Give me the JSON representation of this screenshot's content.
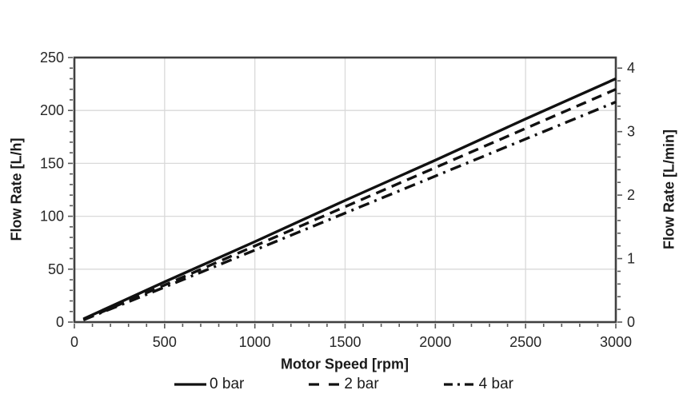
{
  "chart_data": {
    "type": "line",
    "title": "",
    "xlabel": "Motor Speed [rpm]",
    "ylabel_left": "Flow Rate [L/h]",
    "ylabel_right": "Flow Rate [L/min]",
    "x": [
      50,
      500,
      1000,
      1500,
      2000,
      2500,
      3000
    ],
    "series": [
      {
        "name": "0 bar",
        "style": "solid",
        "values": [
          3,
          38,
          76,
          115,
          153,
          192,
          230
        ]
      },
      {
        "name": "2 bar",
        "style": "dashed",
        "values": [
          2,
          35,
          72,
          109,
          146,
          183,
          220
        ]
      },
      {
        "name": "4 bar",
        "style": "dash-dot",
        "values": [
          2,
          33,
          68,
          103,
          138,
          173,
          208
        ]
      }
    ],
    "x_axis": {
      "min": 0,
      "max": 3000,
      "major_step": 500,
      "minor_step": 100,
      "tick_labels": [
        "0",
        "500",
        "1000",
        "1500",
        "2000",
        "2500",
        "3000"
      ]
    },
    "y_axis_left": {
      "min": 0,
      "max": 250,
      "major_step": 50,
      "minor_step": 10,
      "tick_labels": [
        "0",
        "50",
        "100",
        "150",
        "200",
        "250"
      ]
    },
    "y_axis_right": {
      "min": 0,
      "max": 4.1667,
      "major_step": 1,
      "minor_step": 0.2,
      "tick_labels": [
        "0",
        "1",
        "2",
        "3",
        "4"
      ]
    },
    "grid": {
      "horizontal": true,
      "vertical": true
    },
    "legend": {
      "position": "bottom",
      "entries": [
        "0 bar",
        "2 bar",
        "4 bar"
      ]
    },
    "colors": {
      "line": "#111111",
      "grid": "#d9d9d9",
      "axis": "#404040",
      "tick": "#595959",
      "text": "#262626"
    }
  }
}
